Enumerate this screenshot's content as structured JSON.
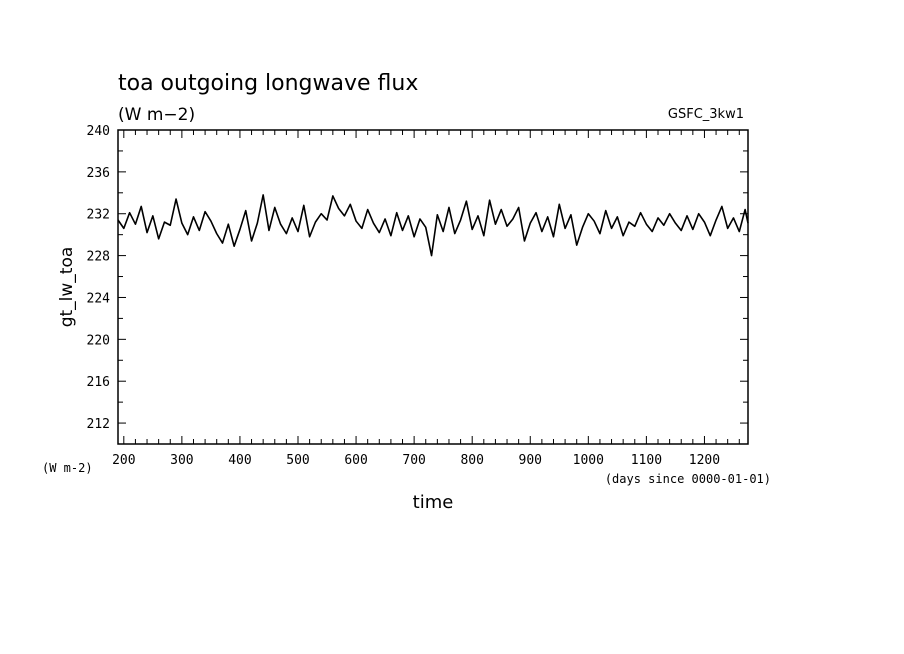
{
  "chart_data": {
    "type": "line",
    "title": "toa outgoing longwave flux",
    "subtitle": "(W m−2)",
    "run_label": "GSFC_3kw1",
    "xlabel": "time",
    "x_units": "(days since 0000-01-01)",
    "ylabel": "gt_lw_toa",
    "y_units": "(W m-2)",
    "xlim": [
      190,
      1275
    ],
    "ylim": [
      210,
      240
    ],
    "x_ticks": [
      200,
      300,
      400,
      500,
      600,
      700,
      800,
      900,
      1000,
      1100,
      1200
    ],
    "y_ticks": [
      212,
      216,
      220,
      224,
      228,
      232,
      236,
      240
    ],
    "grid": false,
    "colors": {
      "line": "#000000",
      "background": "#ffffff"
    },
    "series": [
      {
        "x": [
          190,
          200,
          210,
          220,
          230,
          240,
          250,
          260,
          270,
          280,
          290,
          300,
          310,
          320,
          330,
          340,
          350,
          360,
          370,
          380,
          390,
          400,
          410,
          420,
          430,
          440,
          450,
          460,
          470,
          480,
          490,
          500,
          510,
          520,
          530,
          540,
          550,
          560,
          570,
          580,
          590,
          600,
          610,
          620,
          630,
          640,
          650,
          660,
          670,
          680,
          690,
          700,
          710,
          720,
          730,
          740,
          750,
          760,
          770,
          780,
          790,
          800,
          810,
          820,
          830,
          840,
          850,
          860,
          870,
          880,
          890,
          900,
          910,
          920,
          930,
          940,
          950,
          960,
          970,
          980,
          990,
          1000,
          1010,
          1020,
          1030,
          1040,
          1050,
          1060,
          1070,
          1080,
          1090,
          1100,
          1110,
          1120,
          1130,
          1140,
          1150,
          1160,
          1170,
          1180,
          1190,
          1200,
          1210,
          1220,
          1230,
          1240,
          1250,
          1260,
          1270,
          1275
        ],
        "values": [
          231.4,
          230.6,
          232.1,
          231.0,
          232.7,
          230.2,
          231.8,
          229.6,
          231.2,
          230.9,
          233.4,
          231.1,
          230.0,
          231.7,
          230.4,
          232.2,
          231.3,
          230.1,
          229.2,
          231.0,
          228.9,
          230.5,
          232.3,
          229.4,
          231.1,
          233.8,
          230.4,
          232.6,
          231.0,
          230.1,
          231.6,
          230.3,
          232.8,
          229.8,
          231.2,
          232.0,
          231.4,
          233.7,
          232.5,
          231.8,
          232.9,
          231.3,
          230.6,
          232.4,
          231.1,
          230.2,
          231.5,
          229.9,
          232.1,
          230.4,
          231.8,
          229.8,
          231.5,
          230.7,
          228.0,
          231.9,
          230.3,
          232.6,
          230.1,
          231.4,
          233.2,
          230.5,
          231.8,
          229.9,
          233.3,
          231.0,
          232.4,
          230.8,
          231.5,
          232.6,
          229.4,
          231.1,
          232.1,
          230.3,
          231.7,
          229.8,
          232.9,
          230.6,
          231.9,
          229.0,
          230.7,
          232.0,
          231.3,
          230.1,
          232.3,
          230.6,
          231.7,
          229.9,
          231.2,
          230.8,
          232.1,
          231.0,
          230.3,
          231.6,
          230.9,
          232.0,
          231.1,
          230.4,
          231.8,
          230.5,
          232.0,
          231.2,
          229.9,
          231.4,
          232.7,
          230.6,
          231.6,
          230.3,
          232.4,
          231.1
        ]
      }
    ]
  }
}
